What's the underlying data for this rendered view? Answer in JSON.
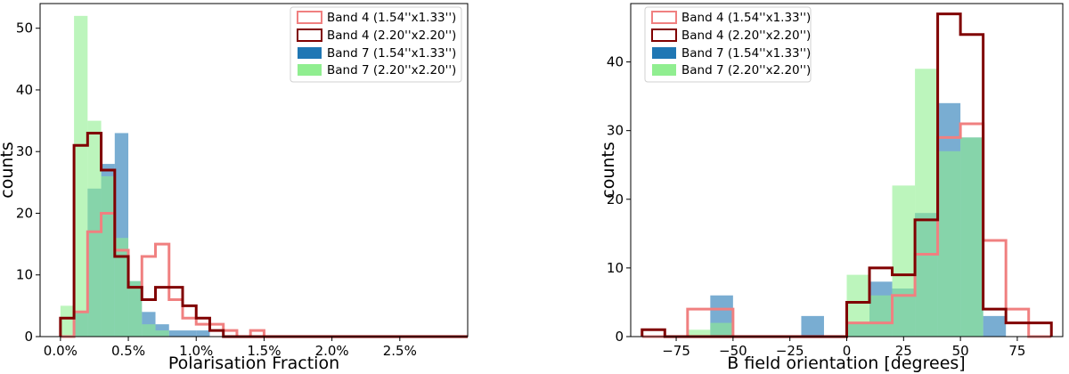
{
  "colors": {
    "b4_small": "#f08080",
    "b4_large": "#800000",
    "b7_small": "#1f77b4",
    "b7_large": "#90ee90"
  },
  "legend_labels": [
    "Band 4 (1.54''x1.33'')",
    "Band 4 (2.20''x2.20'')",
    "Band 7 (1.54''x1.33'')",
    "Band 7 (2.20''x2.20'')"
  ],
  "chart_data": [
    {
      "type": "histogram",
      "xlabel": "Polarisation Fraction",
      "ylabel": "counts",
      "xlim": [
        -0.0015,
        0.03
      ],
      "ylim": [
        0,
        54
      ],
      "xticks": [
        0,
        0.005,
        0.01,
        0.015,
        0.02,
        0.025
      ],
      "xtick_labels": [
        "0.0%",
        "0.5%",
        "1.0%",
        "1.5%",
        "2.0%",
        "2.5%"
      ],
      "yticks": [
        0,
        10,
        20,
        30,
        40,
        50
      ],
      "legend_position": "top-right",
      "bin_edges": [
        0,
        0.001,
        0.002,
        0.003,
        0.004,
        0.005,
        0.006,
        0.007,
        0.008,
        0.009,
        0.01,
        0.011,
        0.012,
        0.013,
        0.014,
        0.015,
        0.016,
        0.017,
        0.018,
        0.019,
        0.02,
        0.021,
        0.022,
        0.023,
        0.024,
        0.025,
        0.026,
        0.027,
        0.028,
        0.029,
        0.03
      ],
      "series": [
        {
          "name": "Band 7 (1.54''x1.33'')",
          "style": "filled",
          "color": "#1f77b4",
          "counts": [
            0,
            4,
            24,
            28,
            33,
            9,
            4,
            2,
            1,
            1,
            1,
            0,
            0,
            0,
            0,
            0,
            0,
            0,
            0,
            0,
            0,
            0,
            0,
            0,
            0,
            0,
            0,
            0,
            0,
            0
          ]
        },
        {
          "name": "Band 7 (2.20''x2.20'')",
          "style": "filled",
          "color": "#90ee90",
          "counts": [
            5,
            52,
            35,
            26,
            16,
            9,
            2,
            1,
            0,
            0,
            0,
            0,
            0,
            0,
            0,
            0,
            0,
            0,
            0,
            0,
            0,
            0,
            0,
            0,
            0,
            0,
            0,
            0,
            0,
            0
          ]
        },
        {
          "name": "Band 4 (1.54''x1.33'')",
          "style": "step",
          "color": "#f08080",
          "counts": [
            0,
            4,
            17,
            20,
            14,
            8,
            13,
            15,
            6,
            3,
            2,
            2,
            1,
            0,
            1,
            0,
            0,
            0,
            0,
            0,
            0,
            0,
            0,
            0,
            0,
            0,
            0,
            0,
            0,
            0
          ]
        },
        {
          "name": "Band 4 (2.20''x2.20'')",
          "style": "step",
          "color": "#800000",
          "counts": [
            3,
            31,
            33,
            27,
            13,
            8,
            6,
            8,
            8,
            5,
            3,
            1,
            0,
            0,
            0,
            0,
            0,
            0,
            0,
            0,
            0,
            0,
            0,
            0,
            0,
            0,
            0,
            0,
            0,
            0
          ]
        }
      ]
    },
    {
      "type": "histogram",
      "xlabel": "B field orientation [degrees]",
      "ylabel": "counts",
      "xlim": [
        -95,
        95
      ],
      "ylim": [
        0,
        48.5
      ],
      "xticks": [
        -75,
        -50,
        -25,
        0,
        25,
        50,
        75
      ],
      "xtick_labels": [
        "−75",
        "−50",
        "−25",
        "0",
        "25",
        "50",
        "75"
      ],
      "yticks": [
        0,
        10,
        20,
        30,
        40
      ],
      "legend_position": "top-left",
      "bin_edges": [
        -90,
        -80,
        -70,
        -60,
        -50,
        -40,
        -30,
        -20,
        -10,
        0,
        10,
        20,
        30,
        40,
        50,
        60,
        70,
        80,
        90
      ],
      "series": [
        {
          "name": "Band 7 (1.54''x1.33'')",
          "style": "filled",
          "color": "#1f77b4",
          "counts": [
            0,
            0,
            0,
            6,
            0,
            0,
            0,
            3,
            0,
            2,
            8,
            7,
            18,
            34,
            29,
            3,
            0,
            0
          ]
        },
        {
          "name": "Band 7 (2.20''x2.20'')",
          "style": "filled",
          "color": "#90ee90",
          "counts": [
            0,
            0,
            1,
            2,
            0,
            0,
            0,
            0,
            0,
            9,
            6,
            22,
            39,
            27,
            29,
            0,
            0,
            0
          ]
        },
        {
          "name": "Band 4 (1.54''x1.33'')",
          "style": "step",
          "color": "#f08080",
          "counts": [
            0,
            0,
            4,
            4,
            0,
            0,
            0,
            0,
            0,
            2,
            2,
            6,
            12,
            29,
            31,
            14,
            4,
            0
          ]
        },
        {
          "name": "Band 4 (2.20''x2.20'')",
          "style": "step",
          "color": "#800000",
          "counts": [
            1,
            0,
            0,
            0,
            0,
            0,
            0,
            0,
            0,
            5,
            10,
            9,
            17,
            47,
            44,
            4,
            2,
            2
          ]
        }
      ]
    }
  ]
}
